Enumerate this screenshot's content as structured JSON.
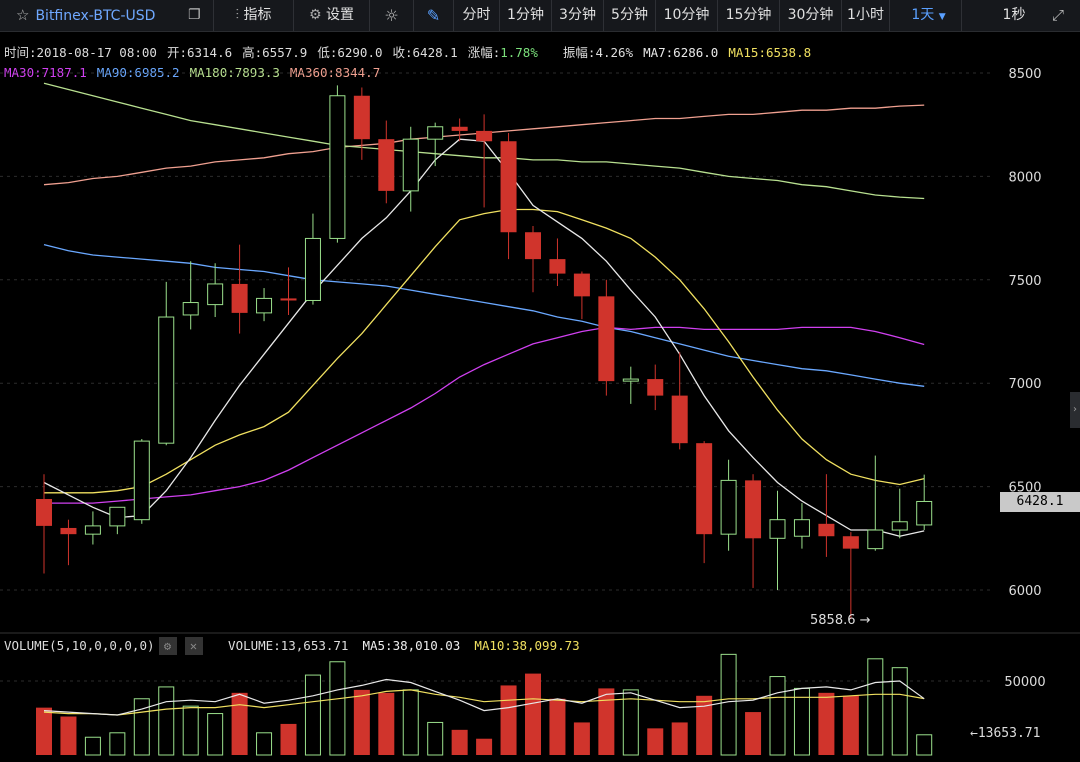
{
  "toolbar": {
    "symbol": "Bitfinex-BTC-USD",
    "indicators": "指标",
    "settings": "设置",
    "intervals": [
      "分时",
      "1分钟",
      "3分钟",
      "5分钟",
      "10分钟",
      "15分钟",
      "30分钟",
      "1小时"
    ],
    "selected_interval": "1天",
    "refresh": "1秒"
  },
  "info": {
    "time": "时间:2018-08-17 08:00",
    "open": "开:6314.6",
    "high": "高:6557.9",
    "low": "低:6290.0",
    "close": "收:6428.1",
    "change_label": "涨幅:",
    "change_value": "1.78%",
    "amplitude": "振幅:4.26%",
    "ma7": "MA7:6286.0",
    "ma15": "MA15:6538.8",
    "ma30": "MA30:7187.1",
    "ma90": "MA90:6985.2",
    "ma180": "MA180:7893.3",
    "ma360": "MA360:8344.7"
  },
  "volume_info": {
    "title": "VOLUME(5,10,0,0,0,0)",
    "volume": "VOLUME:13,653.71",
    "ma5": "MA5:38,010.03",
    "ma10": "MA10:38,099.73"
  },
  "current_price_label": "6428.1",
  "low_marker": "5858.6 →",
  "volume_marker": "←13653.71",
  "colors": {
    "up": "#9be08c",
    "down": "#d0342c",
    "ma7": "#e8e8e8",
    "ma15": "#f0e060",
    "ma30": "#d040f0",
    "ma90": "#6aa8ff",
    "ma180": "#b8e090",
    "ma360": "#f0a090"
  },
  "chart_data": {
    "type": "candlestick",
    "y_ticks": [
      8500,
      8000,
      7500,
      7000,
      6500,
      6000
    ],
    "ylim": [
      5800,
      8650
    ],
    "candles": [
      {
        "o": 6440,
        "h": 6560,
        "l": 6080,
        "c": 6310
      },
      {
        "o": 6300,
        "h": 6340,
        "l": 6120,
        "c": 6270
      },
      {
        "o": 6270,
        "h": 6380,
        "l": 6220,
        "c": 6310
      },
      {
        "o": 6310,
        "h": 6400,
        "l": 6270,
        "c": 6400
      },
      {
        "o": 6340,
        "h": 6730,
        "l": 6320,
        "c": 6720
      },
      {
        "o": 6710,
        "h": 7490,
        "l": 6700,
        "c": 7320
      },
      {
        "o": 7330,
        "h": 7590,
        "l": 7260,
        "c": 7390
      },
      {
        "o": 7380,
        "h": 7580,
        "l": 7320,
        "c": 7480
      },
      {
        "o": 7480,
        "h": 7670,
        "l": 7240,
        "c": 7340
      },
      {
        "o": 7340,
        "h": 7460,
        "l": 7300,
        "c": 7410
      },
      {
        "o": 7410,
        "h": 7560,
        "l": 7330,
        "c": 7400
      },
      {
        "o": 7400,
        "h": 7820,
        "l": 7380,
        "c": 7700
      },
      {
        "o": 7700,
        "h": 8440,
        "l": 7680,
        "c": 8390
      },
      {
        "o": 8390,
        "h": 8430,
        "l": 8080,
        "c": 8180
      },
      {
        "o": 8180,
        "h": 8270,
        "l": 7870,
        "c": 7930
      },
      {
        "o": 7930,
        "h": 8240,
        "l": 7830,
        "c": 8180
      },
      {
        "o": 8180,
        "h": 8260,
        "l": 8050,
        "c": 8240
      },
      {
        "o": 8240,
        "h": 8280,
        "l": 8170,
        "c": 8220
      },
      {
        "o": 8220,
        "h": 8300,
        "l": 7850,
        "c": 8170
      },
      {
        "o": 8170,
        "h": 8210,
        "l": 7600,
        "c": 7730
      },
      {
        "o": 7730,
        "h": 7760,
        "l": 7440,
        "c": 7600
      },
      {
        "o": 7600,
        "h": 7700,
        "l": 7470,
        "c": 7530
      },
      {
        "o": 7530,
        "h": 7540,
        "l": 7310,
        "c": 7420
      },
      {
        "o": 7420,
        "h": 7500,
        "l": 6940,
        "c": 7010
      },
      {
        "o": 7010,
        "h": 7080,
        "l": 6900,
        "c": 7020
      },
      {
        "o": 7020,
        "h": 7090,
        "l": 6870,
        "c": 6940
      },
      {
        "o": 6940,
        "h": 7150,
        "l": 6680,
        "c": 6710
      },
      {
        "o": 6710,
        "h": 6720,
        "l": 6130,
        "c": 6270
      },
      {
        "o": 6270,
        "h": 6630,
        "l": 6190,
        "c": 6530
      },
      {
        "o": 6530,
        "h": 6560,
        "l": 6010,
        "c": 6250
      },
      {
        "o": 6250,
        "h": 6480,
        "l": 6000,
        "c": 6340
      },
      {
        "o": 6260,
        "h": 6420,
        "l": 6200,
        "c": 6340
      },
      {
        "o": 6320,
        "h": 6560,
        "l": 6160,
        "c": 6260
      },
      {
        "o": 6260,
        "h": 6280,
        "l": 5858.6,
        "c": 6200
      },
      {
        "o": 6200,
        "h": 6650,
        "l": 6190,
        "c": 6290
      },
      {
        "o": 6290,
        "h": 6490,
        "l": 6250,
        "c": 6330
      },
      {
        "o": 6314.6,
        "h": 6557.9,
        "l": 6290,
        "c": 6428.1
      }
    ],
    "ma7": [
      6520,
      6460,
      6400,
      6350,
      6360,
      6480,
      6640,
      6820,
      6990,
      7140,
      7290,
      7440,
      7570,
      7700,
      7800,
      7930,
      8080,
      8180,
      8170,
      8020,
      7860,
      7780,
      7700,
      7590,
      7450,
      7320,
      7140,
      6940,
      6770,
      6640,
      6520,
      6430,
      6360,
      6290,
      6290,
      6260,
      6286
    ],
    "ma15": [
      6470,
      6470,
      6470,
      6480,
      6500,
      6560,
      6630,
      6700,
      6750,
      6790,
      6860,
      6990,
      7120,
      7240,
      7380,
      7520,
      7660,
      7790,
      7820,
      7840,
      7840,
      7830,
      7790,
      7750,
      7700,
      7610,
      7500,
      7360,
      7200,
      7030,
      6870,
      6730,
      6630,
      6560,
      6530,
      6510,
      6538.8
    ],
    "ma30": [
      6420,
      6420,
      6420,
      6430,
      6440,
      6450,
      6460,
      6480,
      6500,
      6530,
      6580,
      6640,
      6700,
      6760,
      6820,
      6880,
      6950,
      7030,
      7090,
      7140,
      7190,
      7220,
      7250,
      7270,
      7260,
      7270,
      7270,
      7260,
      7260,
      7260,
      7260,
      7270,
      7270,
      7270,
      7250,
      7220,
      7187.1
    ],
    "ma90": [
      7670,
      7640,
      7620,
      7610,
      7600,
      7590,
      7580,
      7560,
      7550,
      7540,
      7520,
      7500,
      7490,
      7480,
      7470,
      7450,
      7430,
      7410,
      7390,
      7370,
      7350,
      7320,
      7300,
      7270,
      7250,
      7220,
      7190,
      7160,
      7130,
      7110,
      7090,
      7070,
      7060,
      7040,
      7020,
      7000,
      6985.2
    ],
    "ma180": [
      8450,
      8420,
      8390,
      8360,
      8330,
      8300,
      8270,
      8250,
      8230,
      8210,
      8190,
      8170,
      8150,
      8140,
      8130,
      8120,
      8110,
      8100,
      8090,
      8090,
      8080,
      8080,
      8070,
      8070,
      8060,
      8050,
      8040,
      8020,
      8000,
      7990,
      7980,
      7960,
      7950,
      7930,
      7910,
      7900,
      7893.3
    ],
    "ma360": [
      7960,
      7970,
      7990,
      8000,
      8020,
      8040,
      8050,
      8070,
      8080,
      8090,
      8110,
      8120,
      8140,
      8150,
      8160,
      8180,
      8190,
      8200,
      8210,
      8220,
      8230,
      8240,
      8250,
      8260,
      8270,
      8280,
      8280,
      8290,
      8300,
      8300,
      8310,
      8320,
      8320,
      8330,
      8330,
      8340,
      8344.7
    ],
    "volume_ticks": [
      50000
    ],
    "volume_ylim": [
      0,
      60000
    ],
    "volume": [
      32000,
      26000,
      12000,
      15000,
      38000,
      46000,
      33000,
      28000,
      42000,
      15000,
      21000,
      54000,
      63000,
      44000,
      42000,
      44000,
      22000,
      17000,
      11000,
      47000,
      55000,
      38000,
      22000,
      45000,
      44000,
      18000,
      22000,
      40000,
      68000,
      29000,
      53000,
      45000,
      42000,
      40000,
      65000,
      59000,
      13653.71
    ],
    "vol_ma5": [
      30000,
      29000,
      28000,
      27000,
      31000,
      36000,
      37000,
      36000,
      41000,
      35000,
      37000,
      40000,
      44000,
      47000,
      51000,
      49000,
      43000,
      37000,
      30000,
      32000,
      35000,
      38000,
      35000,
      41000,
      42000,
      37000,
      32000,
      33000,
      36000,
      37000,
      42000,
      45000,
      46000,
      44000,
      49000,
      50000,
      38010.03
    ],
    "vol_ma10": [
      29000,
      28000,
      28000,
      27000,
      29000,
      31000,
      32000,
      32000,
      34000,
      32000,
      34000,
      36000,
      38000,
      40000,
      43000,
      44000,
      41000,
      39000,
      36000,
      37000,
      38000,
      37000,
      36000,
      37000,
      38000,
      37000,
      36000,
      36000,
      38000,
      38000,
      39000,
      39000,
      39000,
      40000,
      41000,
      41000,
      38099.73
    ]
  }
}
